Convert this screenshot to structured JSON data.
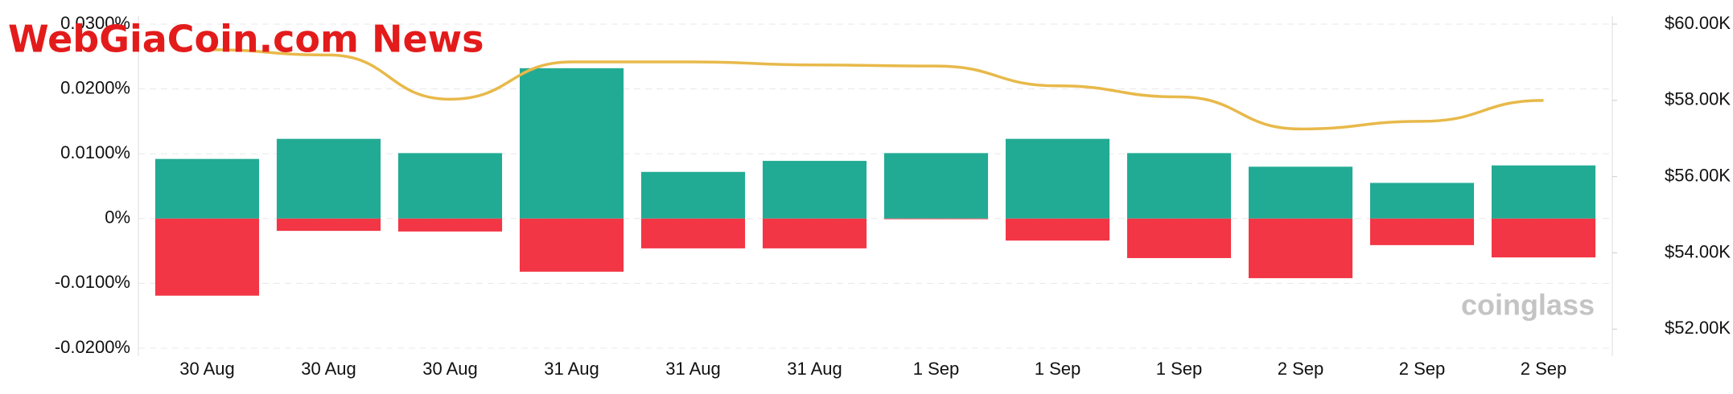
{
  "chart_data": {
    "type": "bar",
    "categories": [
      "30 Aug",
      "30 Aug",
      "30 Aug",
      "31 Aug",
      "31 Aug",
      "31 Aug",
      "1 Sep",
      "1 Sep",
      "1 Sep",
      "2 Sep",
      "2 Sep",
      "2 Sep"
    ],
    "series": [
      {
        "type": "bar",
        "color": "#22ab94",
        "values": [
          0.0092,
          0.0123,
          0.0101,
          0.0232,
          0.0072,
          0.0089,
          0.0101,
          0.0123,
          0.0101,
          0.008,
          0.0055,
          0.0082
        ]
      },
      {
        "type": "bar",
        "color": "#f23645",
        "values": [
          -0.0119,
          -0.0019,
          -0.002,
          -0.0082,
          -0.0046,
          -0.0046,
          -0.0001,
          -0.0034,
          -0.0061,
          -0.0092,
          -0.0041,
          -0.006
        ]
      },
      {
        "type": "line",
        "axis": "y2",
        "color": "#e8b94a",
        "values": [
          59330,
          59190,
          58030,
          59010,
          59010,
          58930,
          58900,
          58380,
          58090,
          57250,
          57450,
          58000
        ]
      }
    ],
    "ylim": [
      -0.02,
      0.03
    ],
    "yticks": [
      {
        "value": -0.02,
        "label": "-0.0200%"
      },
      {
        "value": -0.01,
        "label": "-0.0100%"
      },
      {
        "value": 0,
        "label": "0%"
      },
      {
        "value": 0.01,
        "label": "0.0100%"
      },
      {
        "value": 0.02,
        "label": "0.0200%"
      },
      {
        "value": 0.03,
        "label": "0.0300%"
      }
    ],
    "y2lim": [
      51500,
      60000
    ],
    "y2ticks": [
      {
        "value": 52000,
        "label": "$52.00K"
      },
      {
        "value": 54000,
        "label": "$54.00K"
      },
      {
        "value": 56000,
        "label": "$56.00K"
      },
      {
        "value": 58000,
        "label": "$58.00K"
      },
      {
        "value": 60000,
        "label": "$60.00K"
      }
    ],
    "grid": true,
    "annotations": [
      "WebGiaCoin.com News",
      "coinglass"
    ]
  }
}
